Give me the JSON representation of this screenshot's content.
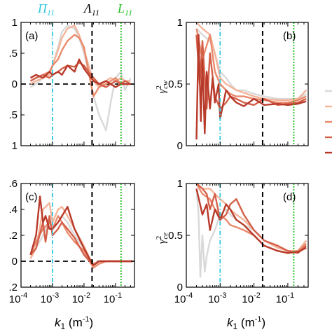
{
  "colors": {
    "background": "#ffffff",
    "axis": "#000000",
    "pi_marker": "#2ec8e0",
    "lambda_marker": "#000000",
    "l_marker": "#22c022",
    "series": [
      "#d9d9d9",
      "#f4b49a",
      "#ea8a6c",
      "#d4604a",
      "#b83a2a"
    ]
  },
  "figure": {
    "top_labels": {
      "pi": "Π",
      "pi_sub": "11",
      "lambda": "Λ",
      "lambda_sub": "11",
      "l": "L",
      "l_sub": "11"
    },
    "xlabel_main": "k",
    "xlabel_sub": "1",
    "xlabel_unit_open": " (m",
    "xlabel_unit_exp": "-1",
    "xlabel_unit_close": ")"
  },
  "chart_data": [
    {
      "panel": "(a)",
      "type": "line",
      "xscale": "log",
      "xlim": [
        0.0001,
        0.4
      ],
      "ylim": [
        -1,
        1
      ],
      "yticks": [
        -1,
        -0.5,
        0,
        0.5,
        1
      ],
      "ytick_labels": [
        "1",
        ".5",
        "0",
        ".5",
        "1"
      ],
      "xticks": [
        0.0001,
        0.001,
        0.01,
        0.1
      ],
      "xtick_labels": [],
      "zero_line": true,
      "vlines": {
        "pi": 0.001,
        "lambda": 0.018,
        "l": 0.15
      },
      "series": [
        {
          "x": [
            0.0002,
            0.0003,
            0.0005,
            0.0008,
            0.001,
            0.0015,
            0.002,
            0.003,
            0.005,
            0.007,
            0.01,
            0.014,
            0.02,
            0.03,
            0.05,
            0.07,
            0.1,
            0.15,
            0.2,
            0.3
          ],
          "y": [
            -0.05,
            0.0,
            0.1,
            0.2,
            0.3,
            0.6,
            0.85,
            0.95,
            0.9,
            0.75,
            0.5,
            0.2,
            -0.2,
            -0.5,
            -0.75,
            -0.3,
            0.1,
            0.2,
            -0.1,
            0.1
          ]
        },
        {
          "x": [
            0.0002,
            0.0003,
            0.0005,
            0.0008,
            0.001,
            0.0015,
            0.002,
            0.003,
            0.005,
            0.007,
            0.01,
            0.014,
            0.02,
            0.03,
            0.05,
            0.07,
            0.1,
            0.15,
            0.2,
            0.3
          ],
          "y": [
            0.0,
            0.05,
            0.1,
            0.15,
            0.3,
            0.55,
            0.75,
            0.9,
            0.95,
            0.8,
            0.55,
            0.3,
            0.05,
            -0.05,
            0.05,
            0.1,
            0.05,
            0.1,
            0.05,
            0.05
          ]
        },
        {
          "x": [
            0.0002,
            0.0003,
            0.0005,
            0.0008,
            0.001,
            0.0015,
            0.002,
            0.003,
            0.005,
            0.007,
            0.01,
            0.014,
            0.02,
            0.03,
            0.05,
            0.07,
            0.1,
            0.15,
            0.2,
            0.3
          ],
          "y": [
            0.05,
            0.1,
            0.15,
            0.2,
            0.3,
            0.4,
            0.55,
            0.7,
            0.8,
            0.75,
            0.6,
            0.2,
            -0.2,
            -0.05,
            0.0,
            0.05,
            0.1,
            0.0,
            0.05,
            0.0
          ]
        },
        {
          "x": [
            0.0002,
            0.0003,
            0.0005,
            0.0008,
            0.001,
            0.0015,
            0.002,
            0.003,
            0.005,
            0.007,
            0.01,
            0.014,
            0.02,
            0.03,
            0.05,
            0.07,
            0.1,
            0.15,
            0.2,
            0.3
          ],
          "y": [
            0.05,
            0.1,
            0.15,
            0.1,
            0.15,
            0.2,
            0.25,
            0.3,
            0.28,
            0.35,
            0.3,
            0.2,
            0.1,
            0.0,
            -0.05,
            0.0,
            0.05,
            0.0,
            0.05,
            0.0
          ]
        },
        {
          "x": [
            0.0002,
            0.0003,
            0.0005,
            0.0008,
            0.001,
            0.0015,
            0.002,
            0.003,
            0.005,
            0.007,
            0.01,
            0.014,
            0.02,
            0.03,
            0.05,
            0.07,
            0.1,
            0.15,
            0.2,
            0.3
          ],
          "y": [
            0.1,
            0.15,
            0.1,
            0.2,
            0.15,
            0.2,
            0.15,
            0.3,
            0.2,
            0.4,
            0.25,
            0.15,
            0.05,
            0.0,
            0.05,
            0.0,
            -0.05,
            0.0,
            0.0,
            0.0
          ]
        }
      ]
    },
    {
      "panel": "(b)",
      "type": "line",
      "xscale": "log",
      "xlim": [
        0.0001,
        0.4
      ],
      "ylim": [
        0,
        1
      ],
      "yticks": [
        0,
        0.5,
        1
      ],
      "ytick_labels": [
        "0",
        "0.5",
        "1"
      ],
      "xticks": [
        0.0001,
        0.001,
        0.01,
        0.1
      ],
      "xtick_labels": [],
      "ylabel_main": "γ",
      "ylabel_sup": "2",
      "ylabel_sub": "cw",
      "vlines": {
        "pi": 0.001,
        "lambda": 0.018,
        "l": 0.15
      },
      "series": [
        {
          "x": [
            0.0002,
            0.0003,
            0.0005,
            0.0007,
            0.001,
            0.0015,
            0.002,
            0.003,
            0.005,
            0.01,
            0.02,
            0.05,
            0.1,
            0.2,
            0.35
          ],
          "y": [
            0.95,
            0.9,
            0.85,
            0.75,
            0.6,
            0.55,
            0.5,
            0.45,
            0.45,
            0.42,
            0.4,
            0.38,
            0.38,
            0.38,
            0.42
          ]
        },
        {
          "x": [
            0.0002,
            0.0003,
            0.0005,
            0.0007,
            0.001,
            0.0015,
            0.002,
            0.003,
            0.005,
            0.01,
            0.02,
            0.05,
            0.1,
            0.2,
            0.35
          ],
          "y": [
            1.0,
            0.95,
            0.9,
            0.75,
            0.55,
            0.5,
            0.48,
            0.45,
            0.43,
            0.4,
            0.38,
            0.37,
            0.37,
            0.38,
            0.45
          ]
        },
        {
          "x": [
            0.0002,
            0.0003,
            0.0005,
            0.0007,
            0.001,
            0.0015,
            0.002,
            0.003,
            0.005,
            0.01,
            0.02,
            0.05,
            0.1,
            0.2,
            0.35
          ],
          "y": [
            0.95,
            0.7,
            0.9,
            0.6,
            0.5,
            0.45,
            0.42,
            0.4,
            0.4,
            0.38,
            0.37,
            0.35,
            0.35,
            0.37,
            0.4
          ]
        },
        {
          "x": [
            0.0002,
            0.00025,
            0.0003,
            0.0004,
            0.0005,
            0.0007,
            0.001,
            0.0015,
            0.002,
            0.003,
            0.005,
            0.01,
            0.02,
            0.05,
            0.1,
            0.2,
            0.35
          ],
          "y": [
            0.9,
            0.5,
            0.85,
            0.3,
            0.75,
            0.4,
            0.3,
            0.35,
            0.4,
            0.38,
            0.35,
            0.33,
            0.38,
            0.33,
            0.34,
            0.35,
            0.38
          ]
        },
        {
          "x": [
            0.0002,
            0.00023,
            0.00027,
            0.0003,
            0.00035,
            0.0004,
            0.0005,
            0.0006,
            0.0007,
            0.0009,
            0.001,
            0.0015,
            0.002,
            0.003,
            0.005,
            0.01,
            0.02,
            0.05,
            0.1,
            0.2,
            0.35
          ],
          "y": [
            0.05,
            0.9,
            0.2,
            0.7,
            0.1,
            0.6,
            0.3,
            0.55,
            0.35,
            0.5,
            0.22,
            0.45,
            0.4,
            0.35,
            0.32,
            0.38,
            0.33,
            0.34,
            0.33,
            0.34,
            0.36
          ]
        }
      ]
    },
    {
      "panel": "(c)",
      "type": "line",
      "xscale": "log",
      "xlim": [
        0.0001,
        0.4
      ],
      "ylim": [
        -0.2,
        0.6
      ],
      "yticks": [
        -0.2,
        0,
        0.2,
        0.4,
        0.6
      ],
      "ytick_labels": [
        ".2",
        "0",
        ".2",
        ".4",
        ".6"
      ],
      "xticks": [
        0.0001,
        0.001,
        0.01,
        0.1
      ],
      "xtick_labels": [
        "10",
        "10",
        "10",
        "10"
      ],
      "xtick_exps": [
        "-4",
        "-3",
        "-2",
        "-1"
      ],
      "zero_line": true,
      "vlines": {
        "pi": 0.001,
        "lambda": 0.018,
        "l": 0.15
      },
      "series": [
        {
          "x": [
            0.0002,
            0.0003,
            0.0005,
            0.0008,
            0.001,
            0.0015,
            0.002,
            0.003,
            0.005,
            0.01,
            0.015,
            0.02,
            0.03,
            0.05,
            0.1,
            0.2,
            0.35
          ],
          "y": [
            0.05,
            0.1,
            0.2,
            0.3,
            0.25,
            0.3,
            0.35,
            0.3,
            0.2,
            0.1,
            0.0,
            -0.02,
            0.0,
            0.0,
            0.0,
            0.0,
            0.0
          ]
        },
        {
          "x": [
            0.0002,
            0.0003,
            0.0005,
            0.0008,
            0.001,
            0.0015,
            0.002,
            0.003,
            0.005,
            0.01,
            0.015,
            0.02,
            0.03,
            0.05,
            0.1,
            0.2,
            0.35
          ],
          "y": [
            0.02,
            0.1,
            0.4,
            0.45,
            0.3,
            0.4,
            0.42,
            0.35,
            0.25,
            0.12,
            0.02,
            -0.02,
            0.0,
            0.0,
            0.0,
            0.0,
            0.0
          ]
        },
        {
          "x": [
            0.0002,
            0.0003,
            0.0005,
            0.0008,
            0.001,
            0.0015,
            0.002,
            0.003,
            0.005,
            0.01,
            0.015,
            0.02,
            0.03,
            0.05,
            0.1,
            0.2,
            0.35
          ],
          "y": [
            0.05,
            0.15,
            0.25,
            0.3,
            0.25,
            0.35,
            0.3,
            0.22,
            0.15,
            0.08,
            0.0,
            -0.05,
            -0.02,
            0.0,
            0.0,
            0.0,
            0.0
          ]
        },
        {
          "x": [
            0.0002,
            0.0003,
            0.0005,
            0.0006,
            0.0008,
            0.001,
            0.0015,
            0.002,
            0.003,
            0.005,
            0.01,
            0.015,
            0.02,
            0.03,
            0.05,
            0.1,
            0.2,
            0.35
          ],
          "y": [
            0.05,
            0.1,
            0.3,
            0.15,
            0.35,
            0.2,
            0.25,
            0.3,
            0.25,
            0.18,
            0.05,
            0.0,
            -0.03,
            0.0,
            0.0,
            0.0,
            0.0,
            0.0
          ]
        },
        {
          "x": [
            0.0002,
            0.0003,
            0.0004,
            0.0005,
            0.0006,
            0.0008,
            0.001,
            0.0015,
            0.002,
            0.003,
            0.005,
            0.01,
            0.015,
            0.02,
            0.03,
            0.05,
            0.1,
            0.2,
            0.35
          ],
          "y": [
            0.05,
            0.2,
            0.5,
            0.3,
            0.35,
            0.25,
            0.25,
            0.3,
            0.35,
            0.42,
            0.25,
            0.1,
            0.02,
            -0.03,
            0.0,
            0.0,
            0.0,
            0.0,
            0.0
          ]
        }
      ]
    },
    {
      "panel": "(d)",
      "type": "line",
      "xscale": "log",
      "xlim": [
        0.0001,
        0.4
      ],
      "ylim": [
        0,
        1
      ],
      "yticks": [
        0,
        0.5,
        1
      ],
      "ytick_labels": [
        "0",
        "0.5",
        "1"
      ],
      "xticks": [
        0.0001,
        0.001,
        0.01,
        0.1
      ],
      "xtick_labels": [
        "10",
        "10",
        "10",
        "10"
      ],
      "xtick_exps": [
        "-4",
        "-3",
        "-2",
        "-1"
      ],
      "ylabel_main": "γ",
      "ylabel_sup": "2",
      "ylabel_sub": "ce",
      "vlines": {
        "pi": 0.001,
        "lambda": 0.018,
        "l": 0.15
      },
      "series": [
        {
          "x": [
            0.0002,
            0.00023,
            0.00026,
            0.0003,
            0.00035,
            0.0004,
            0.0005,
            0.0007,
            0.001,
            0.0015,
            0.002,
            0.003,
            0.005,
            0.01,
            0.02,
            0.05,
            0.1,
            0.2,
            0.35
          ],
          "y": [
            0.95,
            0.7,
            0.1,
            0.5,
            0.15,
            0.3,
            0.45,
            0.55,
            0.7,
            0.75,
            0.7,
            0.65,
            0.6,
            0.55,
            0.45,
            0.4,
            0.35,
            0.35,
            0.45
          ]
        },
        {
          "x": [
            0.0002,
            0.0003,
            0.0005,
            0.0007,
            0.001,
            0.0015,
            0.002,
            0.003,
            0.005,
            0.01,
            0.02,
            0.05,
            0.1,
            0.2,
            0.35
          ],
          "y": [
            1.0,
            0.95,
            0.95,
            0.9,
            0.85,
            0.8,
            0.75,
            0.7,
            0.65,
            0.55,
            0.45,
            0.38,
            0.35,
            0.35,
            0.45
          ]
        },
        {
          "x": [
            0.0002,
            0.0003,
            0.0005,
            0.0007,
            0.001,
            0.0015,
            0.002,
            0.003,
            0.005,
            0.01,
            0.02,
            0.05,
            0.1,
            0.2,
            0.35
          ],
          "y": [
            1.0,
            0.9,
            0.85,
            0.75,
            0.7,
            0.65,
            0.6,
            0.58,
            0.55,
            0.5,
            0.4,
            0.35,
            0.33,
            0.35,
            0.42
          ]
        },
        {
          "x": [
            0.0002,
            0.0003,
            0.0004,
            0.0005,
            0.0007,
            0.001,
            0.0015,
            0.002,
            0.003,
            0.005,
            0.01,
            0.02,
            0.05,
            0.1,
            0.2,
            0.35
          ],
          "y": [
            1.0,
            0.95,
            0.9,
            0.75,
            0.9,
            0.65,
            0.7,
            0.8,
            0.85,
            0.7,
            0.55,
            0.45,
            0.4,
            0.35,
            0.33,
            0.4
          ]
        },
        {
          "x": [
            0.0002,
            0.0003,
            0.0004,
            0.0005,
            0.0007,
            0.001,
            0.0015,
            0.002,
            0.003,
            0.005,
            0.01,
            0.02,
            0.05,
            0.1,
            0.2,
            0.35
          ],
          "y": [
            0.95,
            0.7,
            0.8,
            0.55,
            0.75,
            0.65,
            0.8,
            0.75,
            0.65,
            0.6,
            0.5,
            0.4,
            0.35,
            0.33,
            0.34,
            0.38
          ]
        }
      ]
    }
  ],
  "legend_swatches": [
    "#d9d9d9",
    "#f4b49a",
    "#ea8a6c",
    "#d4604a",
    "#b83a2a"
  ]
}
